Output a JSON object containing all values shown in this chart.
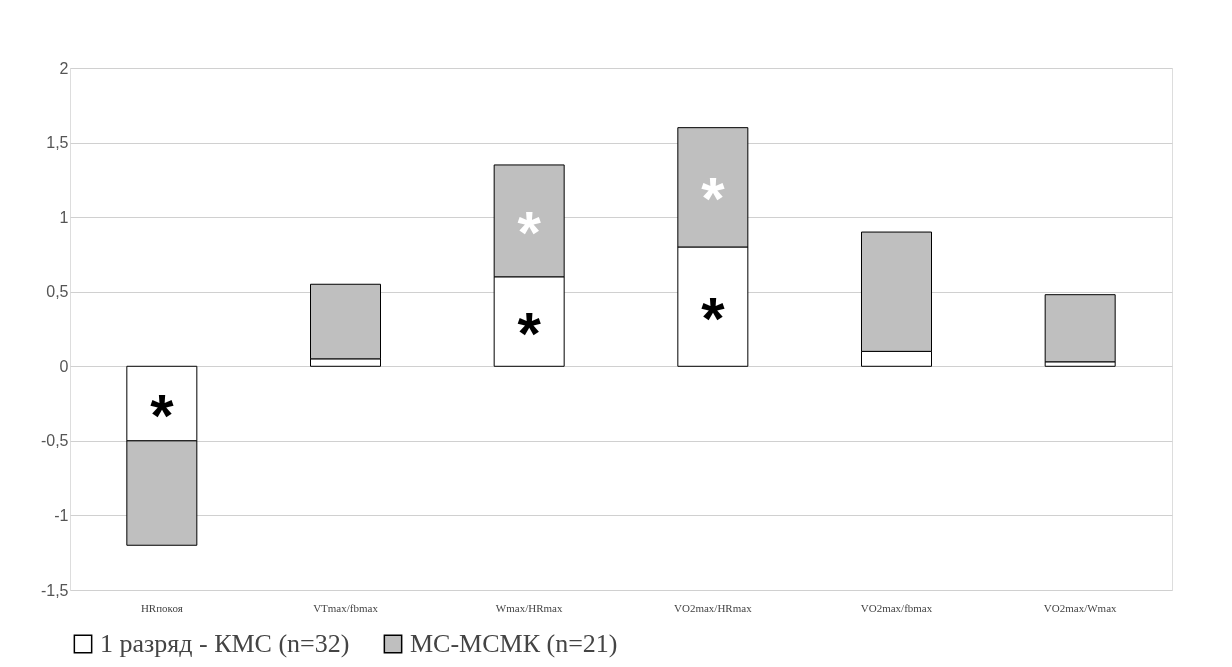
{
  "chart_data": {
    "type": "bar",
    "stacked": true,
    "categories": [
      "HRпокоя",
      "VTmax/fbmax",
      "Wmax/HRmax",
      "VO2max/HRmax",
      "VO2max/fbmax",
      "VO2max/Wmax"
    ],
    "series": [
      {
        "name": "1 разряд - КМС (n=32)",
        "color": "#ffffff",
        "values": [
          -0.5,
          0.05,
          0.6,
          0.8,
          0.1,
          0.03
        ]
      },
      {
        "name": "МС-МСМК (n=21)",
        "color": "#bfbfbf",
        "values": [
          -0.7,
          0.5,
          0.75,
          0.8,
          0.8,
          0.45
        ]
      }
    ],
    "ylim": [
      -1.5,
      2
    ],
    "yticks": [
      {
        "value": -1.5,
        "label": "-1,5"
      },
      {
        "value": -1,
        "label": "-1"
      },
      {
        "value": -0.5,
        "label": "-0,5"
      },
      {
        "value": 0,
        "label": "0"
      },
      {
        "value": 0.5,
        "label": "0,5"
      },
      {
        "value": 1,
        "label": "1"
      },
      {
        "value": 1.5,
        "label": "1,5"
      },
      {
        "value": 2,
        "label": "2"
      }
    ],
    "grid": "y",
    "legend": "bottom left",
    "annotations": [
      {
        "text": "*",
        "x": "HRпокоя",
        "y": -0.5
      },
      {
        "text": "*",
        "x": "Wmax/HRmax",
        "y": 0.6
      },
      {
        "text": "*",
        "x": "Wmax/HRmax",
        "y": 1.35
      },
      {
        "text": "*",
        "x": "VO2max/HRmax",
        "y": 0.8
      },
      {
        "text": "*",
        "x": "VO2max/HRmax",
        "y": 1.6
      }
    ]
  }
}
